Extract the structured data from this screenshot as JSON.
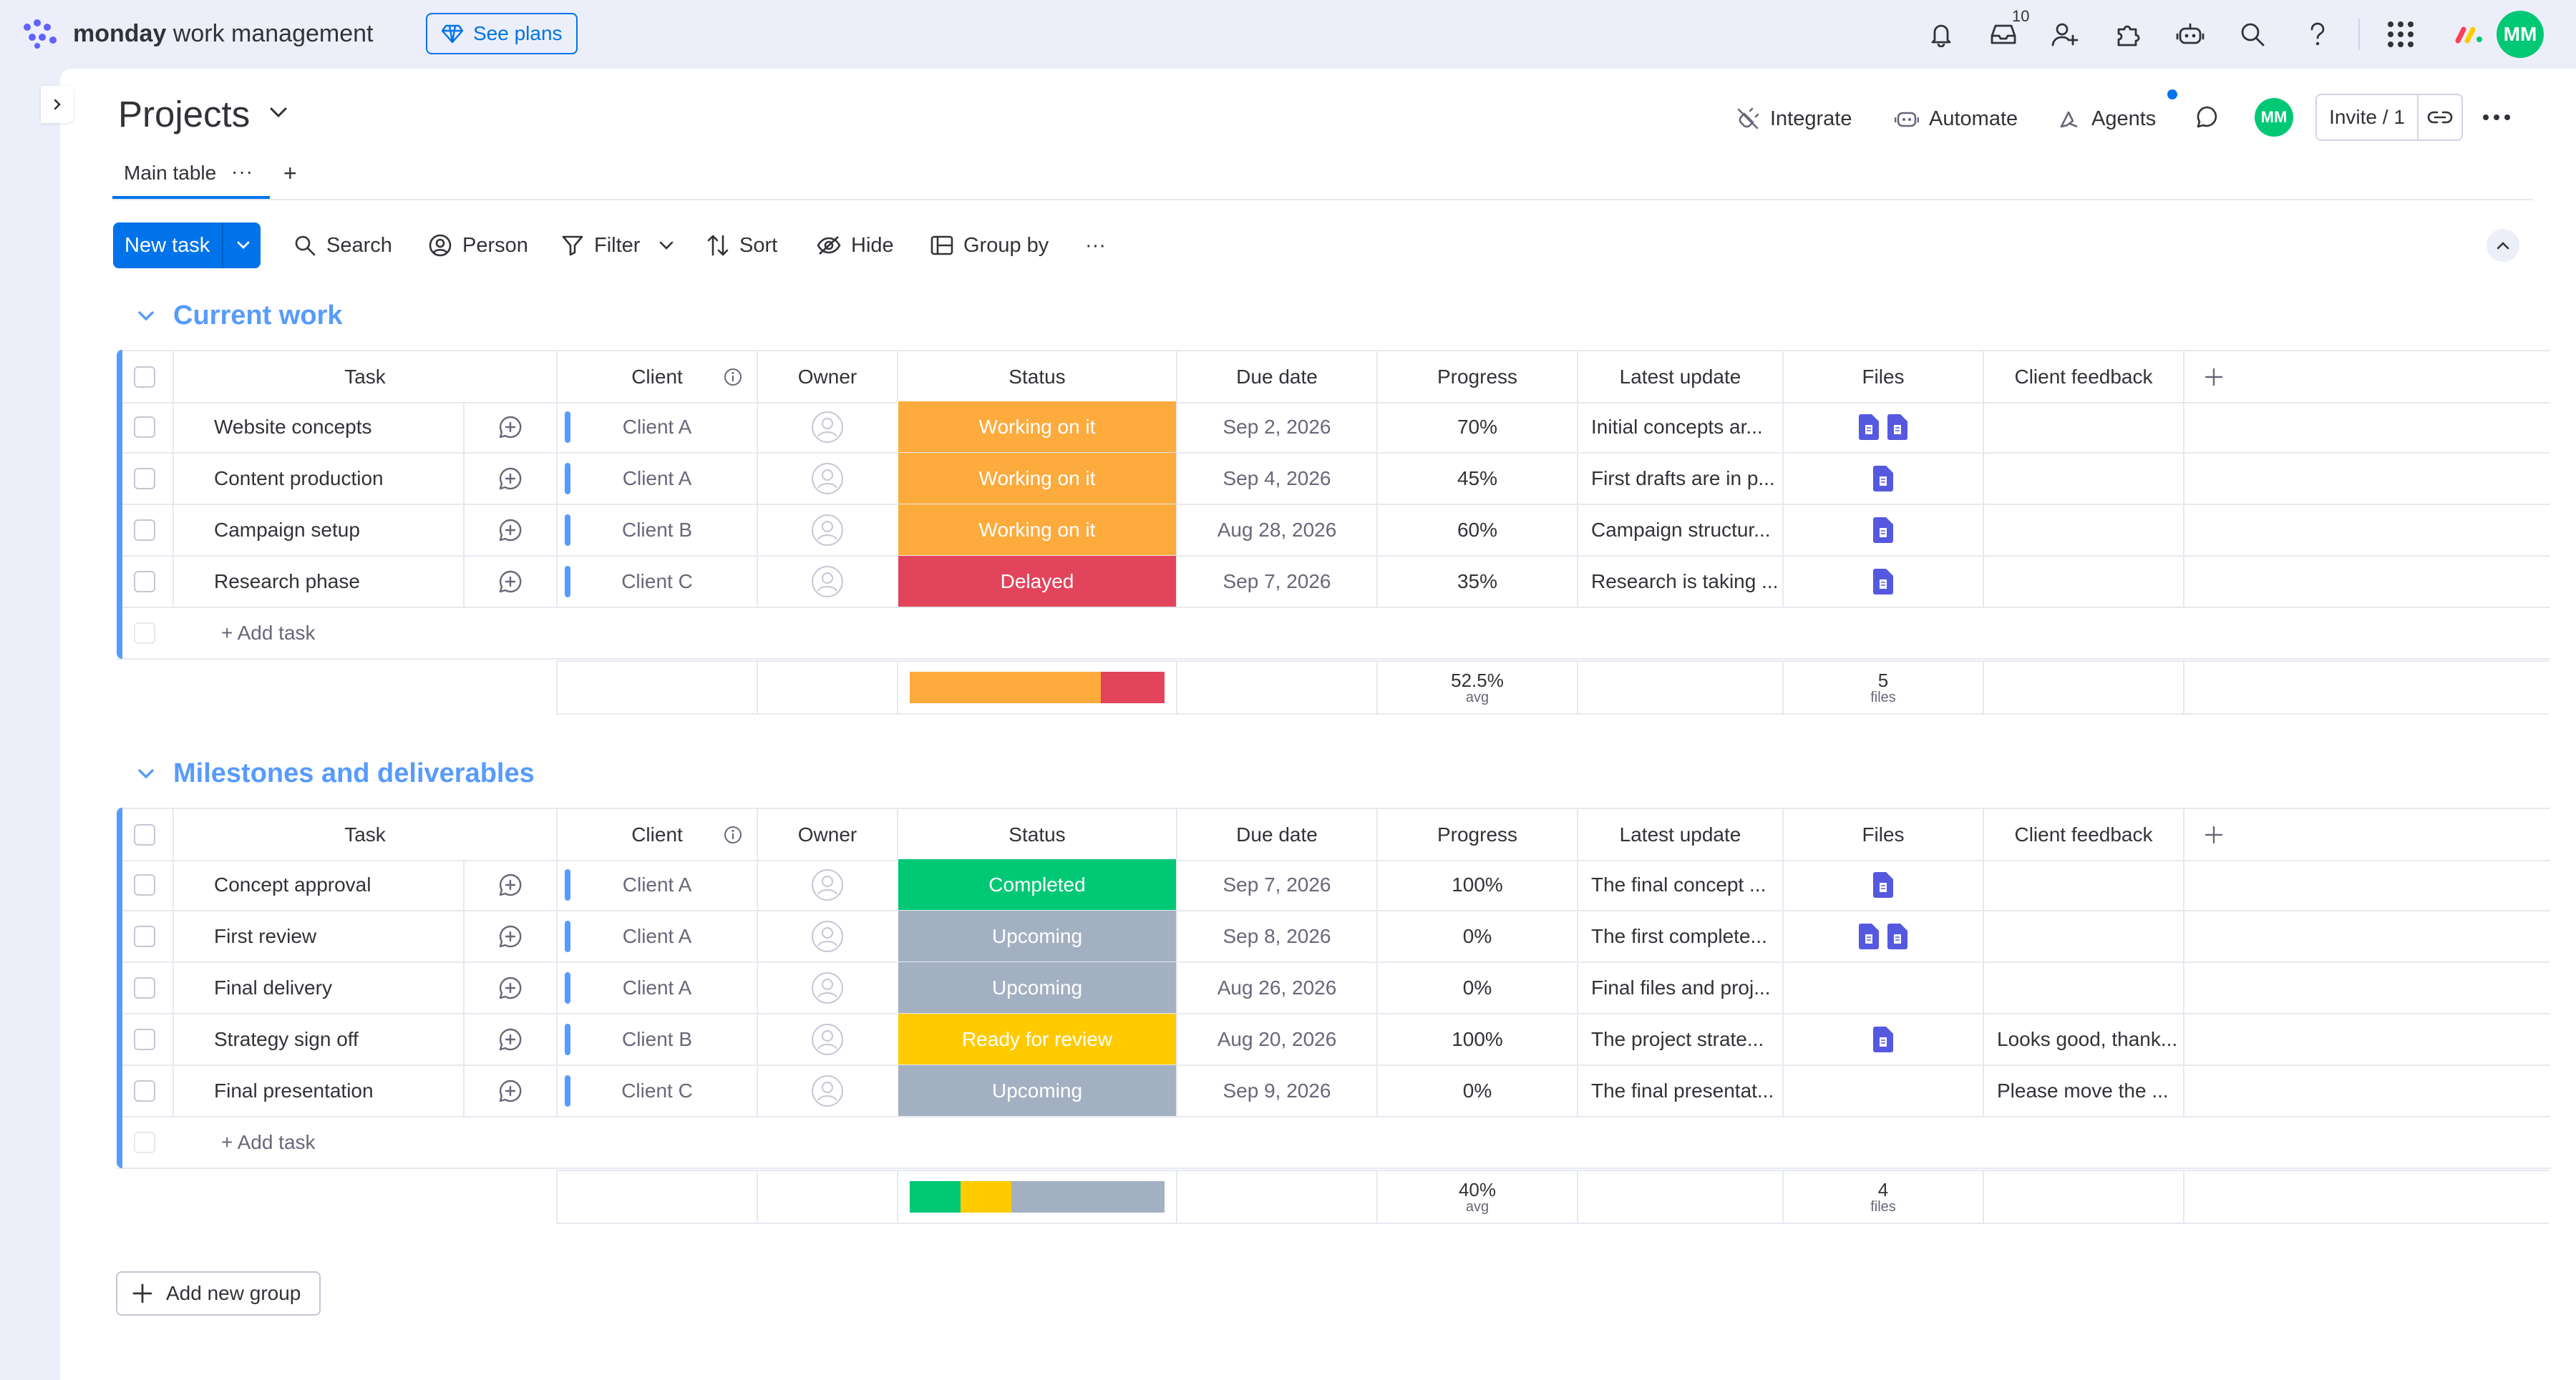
{
  "app": {
    "brand_bold": "monday",
    "brand_rest": " work management",
    "see_plans": "See plans",
    "inbox_count": "10",
    "avatar_initials": "MM"
  },
  "board": {
    "title": "Projects",
    "tab_main": "Main table",
    "tab_more": "···",
    "tab_add": "+",
    "integrate": "Integrate",
    "automate": "Automate",
    "agents": "Agents",
    "invite": "Invite / 1"
  },
  "toolbar": {
    "new_task": "New task",
    "search": "Search",
    "person": "Person",
    "filter": "Filter",
    "sort": "Sort",
    "hide": "Hide",
    "group_by": "Group by",
    "more": "···"
  },
  "columns": {
    "task": "Task",
    "client": "Client",
    "owner": "Owner",
    "status": "Status",
    "due_date": "Due date",
    "progress": "Progress",
    "latest_update": "Latest update",
    "files": "Files",
    "client_feedback": "Client feedback"
  },
  "colors": {
    "working": "#fdab3d",
    "delayed": "#e2445c",
    "completed": "#00c875",
    "upcoming": "#a3b0c2",
    "review": "#ffcb00",
    "accent": "#0073ea",
    "group_title": "#579bfc"
  },
  "groups": [
    {
      "title": "Current work",
      "add_task": "+ Add task",
      "rows": [
        {
          "task": "Website concepts",
          "client": "Client A",
          "status": "Working on it",
          "status_color": "#fdab3d",
          "due": "Sep 2, 2026",
          "progress": "70%",
          "update": "Initial concepts ar...",
          "files": 2,
          "feedback": ""
        },
        {
          "task": "Content production",
          "client": "Client A",
          "status": "Working on it",
          "status_color": "#fdab3d",
          "due": "Sep 4, 2026",
          "progress": "45%",
          "update": "First drafts are in p...",
          "files": 1,
          "feedback": ""
        },
        {
          "task": "Campaign setup",
          "client": "Client B",
          "status": "Working on it",
          "status_color": "#fdab3d",
          "due": "Aug 28, 2026",
          "progress": "60%",
          "update": "Campaign structur...",
          "files": 1,
          "feedback": ""
        },
        {
          "task": "Research phase",
          "client": "Client C",
          "status": "Delayed",
          "status_color": "#e2445c",
          "due": "Sep 7, 2026",
          "progress": "35%",
          "update": "Research is taking ...",
          "files": 1,
          "feedback": ""
        }
      ],
      "summary": {
        "status_bar": [
          {
            "color": "#fdab3d",
            "fraction": 0.75
          },
          {
            "color": "#e2445c",
            "fraction": 0.25
          }
        ],
        "progress": "52.5%",
        "progress_sub": "avg",
        "files": "5",
        "files_sub": "files"
      }
    },
    {
      "title": "Milestones and deliverables",
      "add_task": "+ Add task",
      "rows": [
        {
          "task": "Concept approval",
          "client": "Client A",
          "status": "Completed",
          "status_color": "#00c875",
          "due": "Sep 7, 2026",
          "progress": "100%",
          "update": "The final concept ...",
          "files": 1,
          "feedback": ""
        },
        {
          "task": "First review",
          "client": "Client A",
          "status": "Upcoming",
          "status_color": "#a3b0c2",
          "due": "Sep 8, 2026",
          "progress": "0%",
          "update": "The first complete...",
          "files": 2,
          "feedback": ""
        },
        {
          "task": "Final delivery",
          "client": "Client A",
          "status": "Upcoming",
          "status_color": "#a3b0c2",
          "due": "Aug 26, 2026",
          "progress": "0%",
          "update": "Final files and proj...",
          "files": 0,
          "feedback": ""
        },
        {
          "task": "Strategy sign off",
          "client": "Client B",
          "status": "Ready for review",
          "status_color": "#ffcb00",
          "due": "Aug 20, 2026",
          "progress": "100%",
          "update": "The project strate...",
          "files": 1,
          "feedback": "Looks good, thank..."
        },
        {
          "task": "Final presentation",
          "client": "Client C",
          "status": "Upcoming",
          "status_color": "#a3b0c2",
          "due": "Sep 9, 2026",
          "progress": "0%",
          "update": "The final presentat...",
          "files": 0,
          "feedback": "Please move the ..."
        }
      ],
      "summary": {
        "status_bar": [
          {
            "color": "#00c875",
            "fraction": 0.2
          },
          {
            "color": "#ffcb00",
            "fraction": 0.2
          },
          {
            "color": "#a3b0c2",
            "fraction": 0.6
          }
        ],
        "progress": "40%",
        "progress_sub": "avg",
        "files": "4",
        "files_sub": "files"
      }
    }
  ],
  "add_group": "Add new group"
}
